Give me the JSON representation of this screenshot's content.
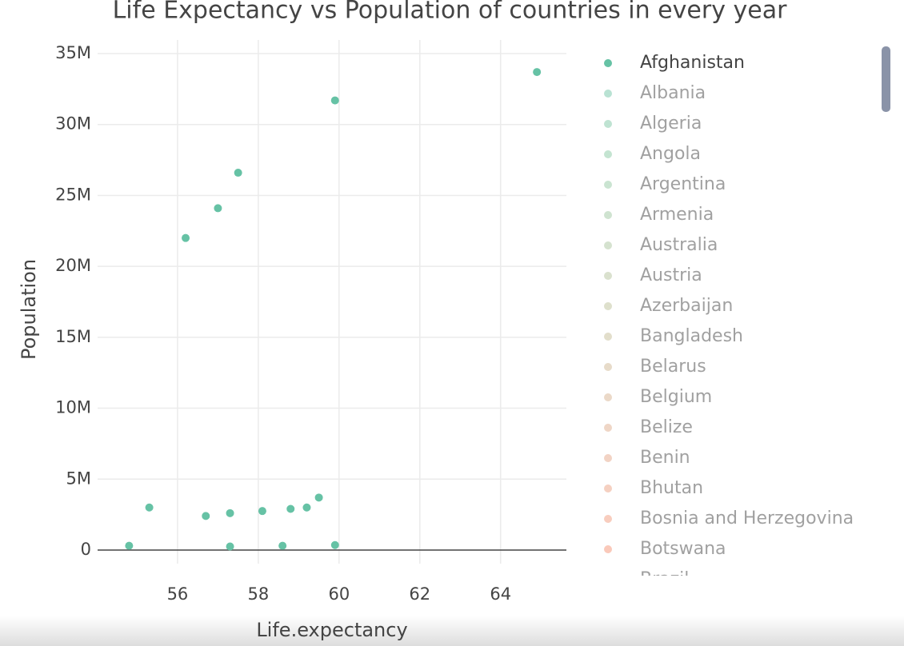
{
  "chart_data": {
    "type": "scatter",
    "title": "Life Expectancy vs Population of countries in every year",
    "x_label": "Life.expectancy",
    "y_label": "Population",
    "xlim": [
      54.02,
      65.63
    ],
    "ylim": [
      -960000,
      35960000
    ],
    "xticks": [
      56,
      58,
      60,
      62,
      64
    ],
    "yticks": [
      0,
      {
        "value": 5000000,
        "label": "5M"
      },
      {
        "value": 10000000,
        "label": "10M"
      },
      {
        "value": 15000000,
        "label": "15M"
      },
      {
        "value": 20000000,
        "label": "20M"
      },
      {
        "value": 25000000,
        "label": "25M"
      },
      {
        "value": 30000000,
        "label": "30M"
      },
      {
        "value": 35000000,
        "label": "35M"
      }
    ],
    "grid": true,
    "series": [
      {
        "name": "Afghanistan",
        "color": "#66c2a5",
        "visible": true,
        "x": [
          54.8,
          55.3,
          56.2,
          56.7,
          57.0,
          57.3,
          57.3,
          57.5,
          58.1,
          58.6,
          58.8,
          59.2,
          59.5,
          59.9,
          59.9,
          64.9
        ],
        "values": [
          300000,
          3000000,
          22000000,
          2400000,
          24100000,
          2600000,
          250000,
          26600000,
          2750000,
          300000,
          2900000,
          3000000,
          3700000,
          31700000,
          350000,
          33700000
        ]
      },
      {
        "name": "Albania",
        "color": "#74c6a8",
        "visible": "legendonly",
        "x": [],
        "values": []
      },
      {
        "name": "Algeria",
        "color": "#7fc8a6",
        "visible": "legendonly",
        "x": [],
        "values": []
      },
      {
        "name": "Angola",
        "color": "#8ac9a4",
        "visible": "legendonly",
        "x": [],
        "values": []
      },
      {
        "name": "Argentina",
        "color": "#95c9a3",
        "visible": "legendonly",
        "x": [],
        "values": []
      },
      {
        "name": "Armenia",
        "color": "#a0c8a1",
        "visible": "legendonly",
        "x": [],
        "values": []
      },
      {
        "name": "Australia",
        "color": "#abc69f",
        "visible": "legendonly",
        "x": [],
        "values": []
      },
      {
        "name": "Austria",
        "color": "#b5c49d",
        "visible": "legendonly",
        "x": [],
        "values": []
      },
      {
        "name": "Azerbaijan",
        "color": "#bec19a",
        "visible": "legendonly",
        "x": [],
        "values": []
      },
      {
        "name": "Bangladesh",
        "color": "#c6bd97",
        "visible": "legendonly",
        "x": [],
        "values": []
      },
      {
        "name": "Belarus",
        "color": "#cfb894",
        "visible": "legendonly",
        "x": [],
        "values": []
      },
      {
        "name": "Belgium",
        "color": "#d8b391",
        "visible": "legendonly",
        "x": [],
        "values": []
      },
      {
        "name": "Belize",
        "color": "#dfad8d",
        "visible": "legendonly",
        "x": [],
        "values": []
      },
      {
        "name": "Benin",
        "color": "#e6a789",
        "visible": "legendonly",
        "x": [],
        "values": []
      },
      {
        "name": "Bhutan",
        "color": "#eca184",
        "visible": "legendonly",
        "x": [],
        "values": []
      },
      {
        "name": "Bosnia and Herzegovina",
        "color": "#f19b7e",
        "visible": "legendonly",
        "x": [],
        "values": []
      },
      {
        "name": "Botswana",
        "color": "#f59476",
        "visible": "legendonly",
        "x": [],
        "values": []
      },
      {
        "name": "Brazil",
        "color": "#f88d6d",
        "visible": "legendonly",
        "x": [],
        "values": []
      }
    ]
  }
}
